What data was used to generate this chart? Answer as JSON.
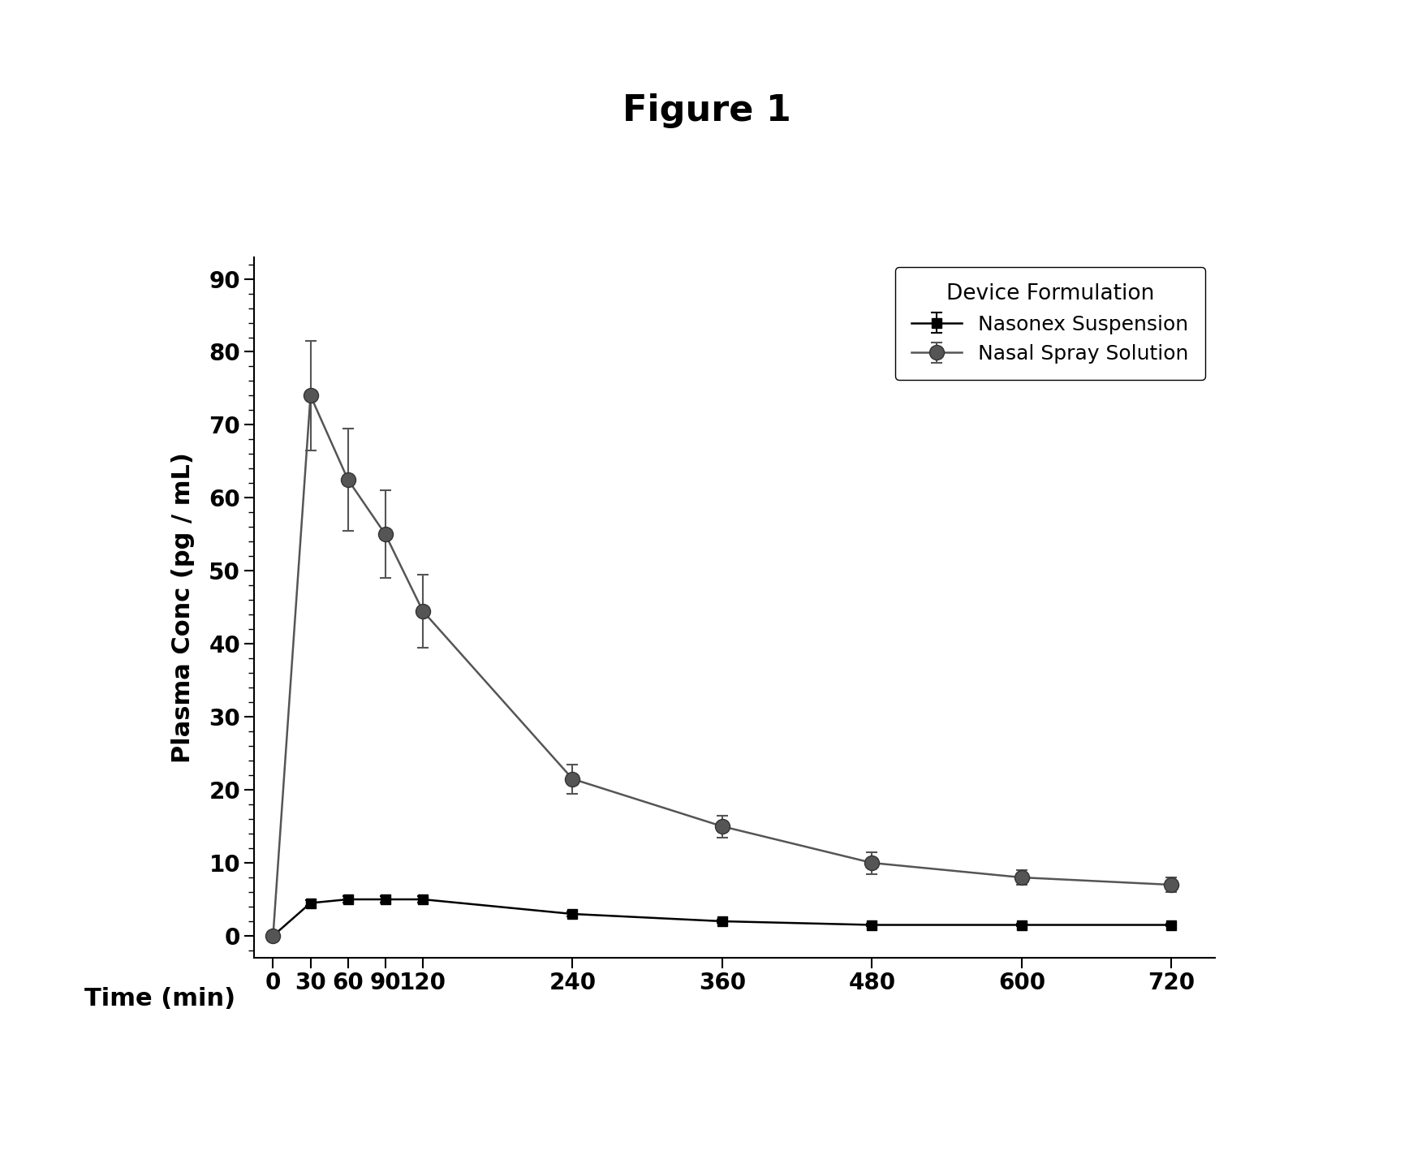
{
  "title": "Figure 1",
  "xlabel_label": "Time (min)",
  "ylabel": "Plasma Conc (pg / mL)",
  "ylim": [
    -3,
    93
  ],
  "yticks": [
    0,
    10,
    20,
    30,
    40,
    50,
    60,
    70,
    80,
    90
  ],
  "time_values": [
    0,
    30,
    60,
    90,
    120,
    240,
    360,
    480,
    600,
    720
  ],
  "time_labels": [
    "0",
    "30",
    "60",
    "90",
    "120",
    "240",
    "360",
    "480",
    "600",
    "720"
  ],
  "nasonex_y": [
    0,
    4.5,
    5.0,
    5.0,
    5.0,
    3.0,
    2.0,
    1.5,
    1.5,
    1.5
  ],
  "nasonex_yerr": [
    0.2,
    0.4,
    0.4,
    0.4,
    0.4,
    0.3,
    0.2,
    0.2,
    0.2,
    0.2
  ],
  "nasal_y": [
    0,
    74.0,
    62.5,
    55.0,
    44.5,
    21.5,
    15.0,
    10.0,
    8.0,
    7.0
  ],
  "nasal_yerr_upper": [
    0.5,
    7.5,
    7.0,
    6.0,
    5.0,
    2.0,
    1.5,
    1.5,
    1.0,
    1.0
  ],
  "nasal_yerr_lower": [
    0.5,
    7.5,
    7.0,
    6.0,
    5.0,
    2.0,
    1.5,
    1.5,
    1.0,
    1.0
  ],
  "nasonex_color": "#000000",
  "nasal_color": "#555555",
  "legend_title": "Device Formulation",
  "legend_label1": "Nasonex Suspension",
  "legend_label2": "Nasal Spray Solution",
  "background_color": "#ffffff",
  "title_fontsize": 32,
  "axis_label_fontsize": 22,
  "tick_fontsize": 20,
  "legend_fontsize": 18,
  "legend_title_fontsize": 19
}
